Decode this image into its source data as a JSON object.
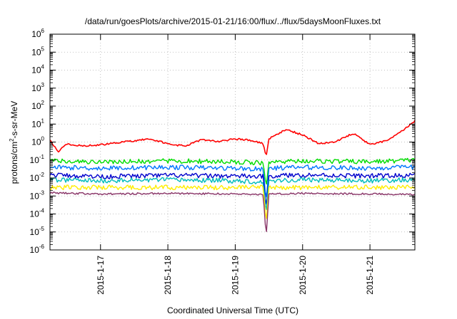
{
  "chart_data": {
    "type": "line",
    "title": "/data/run/goesPlots/archive/2015-01-21/16:00/flux/../flux/5daysMoonFluxes.txt",
    "xlabel": "Coordinated Universal Time (UTC)",
    "ylabel": {
      "base": "protons/cm",
      "sup": "2",
      "rest": "-s-sr-MeV"
    },
    "y_scale": "log",
    "ylim": [
      1e-06,
      1000000.0
    ],
    "yticks": [
      {
        "value": 1e-06,
        "base": "10",
        "exp": "-6"
      },
      {
        "value": 1e-05,
        "base": "10",
        "exp": "-5"
      },
      {
        "value": 0.0001,
        "base": "10",
        "exp": "-4"
      },
      {
        "value": 0.001,
        "base": "10",
        "exp": "-3"
      },
      {
        "value": 0.01,
        "base": "10",
        "exp": "-2"
      },
      {
        "value": 0.1,
        "base": "10",
        "exp": "-1"
      },
      {
        "value": 1,
        "base": "10",
        "exp": "0"
      },
      {
        "value": 10,
        "base": "10",
        "exp": "1"
      },
      {
        "value": 100,
        "base": "10",
        "exp": "2"
      },
      {
        "value": 1000,
        "base": "10",
        "exp": "3"
      },
      {
        "value": 10000,
        "base": "10",
        "exp": "4"
      },
      {
        "value": 100000,
        "base": "10",
        "exp": "5"
      },
      {
        "value": 1000000,
        "base": "10",
        "exp": "6"
      }
    ],
    "xlim": [
      "2015-01-16 06:00",
      "2015-01-21 16:00"
    ],
    "xticks": [
      "2015-1-17",
      "2015-1-18",
      "2015-1-19",
      "2015-1-20",
      "2015-1-21"
    ],
    "xtick_dates": [
      "2015-01-17 00:00",
      "2015-01-18 00:00",
      "2015-01-19 00:00",
      "2015-01-20 00:00",
      "2015-01-21 00:00"
    ],
    "grid": true,
    "dip_time": "2015-01-19 11:00",
    "series": [
      {
        "color": "#ff0000",
        "t": [
          "2015-01-16 06:00",
          "2015-01-16 09:00",
          "2015-01-16 12:00",
          "2015-01-16 18:00",
          "2015-01-17 00:00",
          "2015-01-17 06:00",
          "2015-01-17 12:00",
          "2015-01-17 18:00",
          "2015-01-18 00:00",
          "2015-01-18 06:00",
          "2015-01-18 12:00",
          "2015-01-18 18:00",
          "2015-01-19 00:00",
          "2015-01-19 06:00",
          "2015-01-19 10:00",
          "2015-01-19 11:00",
          "2015-01-19 12:00",
          "2015-01-19 18:00",
          "2015-01-20 00:00",
          "2015-01-20 06:00",
          "2015-01-20 12:00",
          "2015-01-20 18:00",
          "2015-01-21 00:00",
          "2015-01-21 06:00",
          "2015-01-21 12:00",
          "2015-01-21 16:00"
        ],
        "y": [
          1.2,
          0.3,
          0.8,
          0.6,
          0.7,
          0.9,
          1.2,
          1.5,
          0.8,
          0.6,
          1.3,
          1.1,
          1.5,
          1.2,
          0.8,
          0.15,
          1.5,
          5.0,
          2.5,
          0.8,
          1.1,
          3.0,
          0.7,
          1.2,
          5.0,
          15.0
        ]
      },
      {
        "color": "#00dd00",
        "t": [
          "2015-01-16 06:00",
          "2015-01-17 00:00",
          "2015-01-18 00:00",
          "2015-01-19 00:00",
          "2015-01-19 10:00",
          "2015-01-19 11:00",
          "2015-01-19 12:00",
          "2015-01-20 00:00",
          "2015-01-21 00:00",
          "2015-01-21 16:00"
        ],
        "y": [
          0.09,
          0.08,
          0.09,
          0.08,
          0.07,
          0.003,
          0.08,
          0.09,
          0.08,
          0.1
        ]
      },
      {
        "color": "#0077ff",
        "t": [
          "2015-01-16 06:00",
          "2015-01-17 00:00",
          "2015-01-18 00:00",
          "2015-01-19 00:00",
          "2015-01-19 10:00",
          "2015-01-19 11:00",
          "2015-01-19 12:00",
          "2015-01-20 00:00",
          "2015-01-21 00:00",
          "2015-01-21 16:00"
        ],
        "y": [
          0.04,
          0.035,
          0.04,
          0.035,
          0.03,
          0.0005,
          0.035,
          0.04,
          0.035,
          0.04
        ]
      },
      {
        "color": "#0000cc",
        "t": [
          "2015-01-16 06:00",
          "2015-01-17 00:00",
          "2015-01-18 00:00",
          "2015-01-19 00:00",
          "2015-01-19 10:00",
          "2015-01-19 11:00",
          "2015-01-19 12:00",
          "2015-01-20 00:00",
          "2015-01-21 00:00",
          "2015-01-21 16:00"
        ],
        "y": [
          0.015,
          0.012,
          0.014,
          0.013,
          0.012,
          0.0002,
          0.013,
          0.015,
          0.013,
          0.014
        ]
      },
      {
        "color": "#00bbbb",
        "t": [
          "2015-01-16 06:00",
          "2015-01-17 00:00",
          "2015-01-18 00:00",
          "2015-01-19 00:00",
          "2015-01-19 10:00",
          "2015-01-19 11:00",
          "2015-01-19 12:00",
          "2015-01-20 00:00",
          "2015-01-21 00:00",
          "2015-01-21 16:00"
        ],
        "y": [
          0.008,
          0.007,
          0.008,
          0.007,
          0.006,
          0.0001,
          0.007,
          0.008,
          0.007,
          0.008
        ]
      },
      {
        "color": "#ffee00",
        "t": [
          "2015-01-16 06:00",
          "2015-01-17 00:00",
          "2015-01-18 00:00",
          "2015-01-19 00:00",
          "2015-01-19 10:00",
          "2015-01-19 11:00",
          "2015-01-19 12:00",
          "2015-01-20 00:00",
          "2015-01-21 00:00",
          "2015-01-21 16:00"
        ],
        "y": [
          0.003,
          0.003,
          0.003,
          0.003,
          0.003,
          3e-05,
          0.003,
          0.003,
          0.003,
          0.003
        ]
      },
      {
        "color": "#883366",
        "t": [
          "2015-01-16 06:00",
          "2015-01-17 00:00",
          "2015-01-18 00:00",
          "2015-01-19 00:00",
          "2015-01-19 10:00",
          "2015-01-19 11:00",
          "2015-01-19 12:00",
          "2015-01-20 00:00",
          "2015-01-21 00:00",
          "2015-01-21 16:00"
        ],
        "y": [
          0.0015,
          0.0013,
          0.0014,
          0.0013,
          0.0012,
          5e-06,
          0.0013,
          0.0014,
          0.0013,
          0.0012
        ]
      }
    ]
  }
}
